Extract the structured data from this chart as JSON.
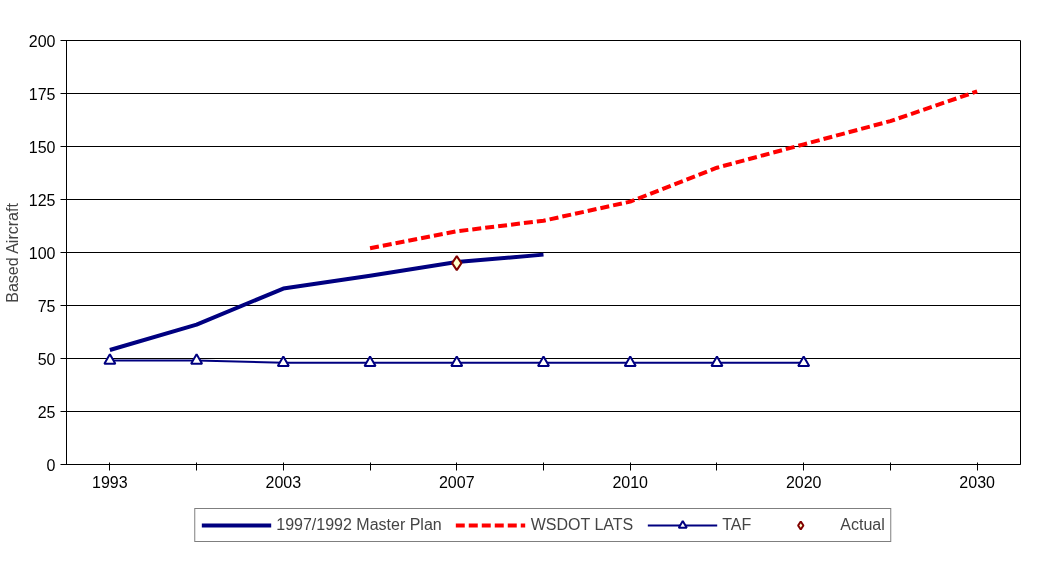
{
  "chart_data": {
    "type": "line",
    "ylabel": "Based Aircraft",
    "categories": [
      "1993",
      null,
      "2003",
      null,
      "2007",
      null,
      "2010",
      null,
      "2020",
      null,
      "2030"
    ],
    "series": [
      {
        "name": "1997/1992 Master Plan",
        "color": "#000080",
        "line_style": "solid",
        "marker": "none",
        "values": [
          54,
          66,
          83,
          89,
          95.5,
          99,
          null,
          null,
          null,
          null,
          null
        ]
      },
      {
        "name": "WSDOT LATS",
        "color": "#ff0000",
        "line_style": "dashed",
        "marker": "none",
        "values": [
          null,
          null,
          null,
          102,
          110,
          115,
          124,
          140,
          151,
          162,
          176
        ]
      },
      {
        "name": "TAF",
        "color": "#000080",
        "line_style": "solid",
        "marker": "triangle",
        "values": [
          49,
          49,
          48,
          48,
          48,
          48,
          48,
          48,
          48,
          null,
          null
        ]
      },
      {
        "name": "Actual",
        "type": "scatter",
        "color": "#800000",
        "marker": "diamond",
        "values": [
          null,
          null,
          null,
          null,
          95,
          null,
          null,
          null,
          null,
          null,
          null
        ]
      }
    ],
    "ylim": [
      0,
      200
    ],
    "yticks": [
      0,
      25,
      50,
      75,
      100,
      125,
      150,
      175,
      200
    ],
    "grid": "y",
    "legend": "bottom"
  }
}
